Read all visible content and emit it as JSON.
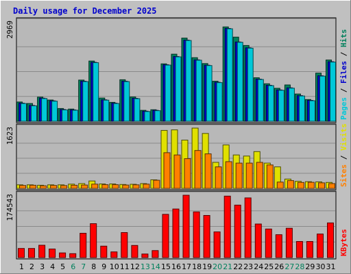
{
  "title": "Daily usage for December 2025",
  "colors": {
    "background": "#c0c0c0",
    "panel": "#b8b8b8",
    "grid": "#8a8a8a",
    "title": "#0000cc",
    "hits": "#00805c",
    "files": "#0000cc",
    "pages": "#00c8d8",
    "visits": "#e0e000",
    "sites": "#ff8000",
    "kbytes": "#ff0000",
    "weekend": "#00805c",
    "weekday": "#000000"
  },
  "chart_data": [
    {
      "type": "bar",
      "title": "Daily usage for December 2025",
      "categories": [
        "1",
        "2",
        "3",
        "4",
        "5",
        "6",
        "7",
        "8",
        "9",
        "10",
        "11",
        "12",
        "13",
        "14",
        "15",
        "16",
        "17",
        "18",
        "19",
        "20",
        "21",
        "22",
        "23",
        "24",
        "25",
        "26",
        "27",
        "28",
        "29",
        "30",
        "31"
      ],
      "weekend_days": [
        "6",
        "7",
        "13",
        "14",
        "20",
        "21",
        "27",
        "28"
      ],
      "ylabel_max": "2969",
      "ylim": [
        0,
        2969
      ],
      "legend": [
        {
          "label": "Hits",
          "color": "#00805c"
        },
        {
          "label": "Files",
          "color": "#0000cc"
        },
        {
          "label": "Pages",
          "color": "#00c8d8"
        }
      ],
      "series": [
        {
          "name": "Hits",
          "values": [
            575,
            530,
            720,
            635,
            380,
            365,
            1230,
            1800,
            695,
            565,
            1240,
            725,
            325,
            345,
            1715,
            2005,
            2485,
            1900,
            1725,
            1195,
            2820,
            2515,
            2265,
            1300,
            1120,
            985,
            1085,
            815,
            650,
            1440,
            1830
          ]
        },
        {
          "name": "Files",
          "values": [
            540,
            470,
            690,
            610,
            350,
            340,
            1195,
            1760,
            640,
            540,
            1195,
            685,
            300,
            325,
            1690,
            1935,
            2425,
            1835,
            1675,
            1165,
            2775,
            2370,
            2195,
            1260,
            1075,
            935,
            1000,
            765,
            625,
            1360,
            1780
          ]
        },
        {
          "name": "Pages",
          "values": [
            530,
            460,
            680,
            600,
            340,
            330,
            1185,
            1750,
            630,
            530,
            1185,
            675,
            290,
            315,
            1680,
            1925,
            2415,
            1825,
            1665,
            1155,
            2765,
            2360,
            2185,
            1250,
            1065,
            925,
            990,
            755,
            615,
            1350,
            1770
          ]
        }
      ]
    },
    {
      "type": "bar",
      "categories": [
        "1",
        "2",
        "3",
        "4",
        "5",
        "6",
        "7",
        "8",
        "9",
        "10",
        "11",
        "12",
        "13",
        "14",
        "15",
        "16",
        "17",
        "18",
        "19",
        "20",
        "21",
        "22",
        "23",
        "24",
        "25",
        "26",
        "27",
        "28",
        "29",
        "30",
        "31"
      ],
      "ylabel_max": "1623",
      "ylim": [
        0,
        1623
      ],
      "legend": [
        {
          "label": "Visits",
          "color": "#e0e000"
        },
        {
          "label": "Sites",
          "color": "#ff8000"
        }
      ],
      "series": [
        {
          "name": "Visits",
          "values": [
            95,
            95,
            85,
            95,
            95,
            115,
            130,
            200,
            120,
            120,
            105,
            110,
            130,
            230,
            1560,
            1575,
            1300,
            1623,
            1480,
            700,
            1170,
            900,
            870,
            990,
            680,
            580,
            250,
            190,
            180,
            175,
            160
          ]
        },
        {
          "name": "Sites",
          "values": [
            80,
            85,
            70,
            80,
            75,
            85,
            90,
            115,
            100,
            100,
            90,
            95,
            115,
            220,
            960,
            900,
            800,
            1020,
            930,
            580,
            720,
            680,
            680,
            700,
            630,
            170,
            210,
            160,
            165,
            150,
            130
          ]
        }
      ]
    },
    {
      "type": "bar",
      "categories": [
        "1",
        "2",
        "3",
        "4",
        "5",
        "6",
        "7",
        "8",
        "9",
        "10",
        "11",
        "12",
        "13",
        "14",
        "15",
        "16",
        "17",
        "18",
        "19",
        "20",
        "21",
        "22",
        "23",
        "24",
        "25",
        "26",
        "27",
        "28",
        "29",
        "30",
        "31"
      ],
      "ylabel_max": "174543",
      "ylim": [
        0,
        174543
      ],
      "legend": [
        {
          "label": "KBytes",
          "color": "#ff0000"
        }
      ],
      "series": [
        {
          "name": "KBytes",
          "values": [
            25500,
            25500,
            34500,
            24000,
            13000,
            11000,
            68000,
            95000,
            32000,
            16000,
            70000,
            34000,
            10000,
            19500,
            121000,
            136000,
            174543,
            128000,
            118000,
            72000,
            172000,
            147000,
            167000,
            94000,
            80000,
            64000,
            82000,
            45000,
            45000,
            66000,
            97000
          ]
        }
      ]
    }
  ]
}
